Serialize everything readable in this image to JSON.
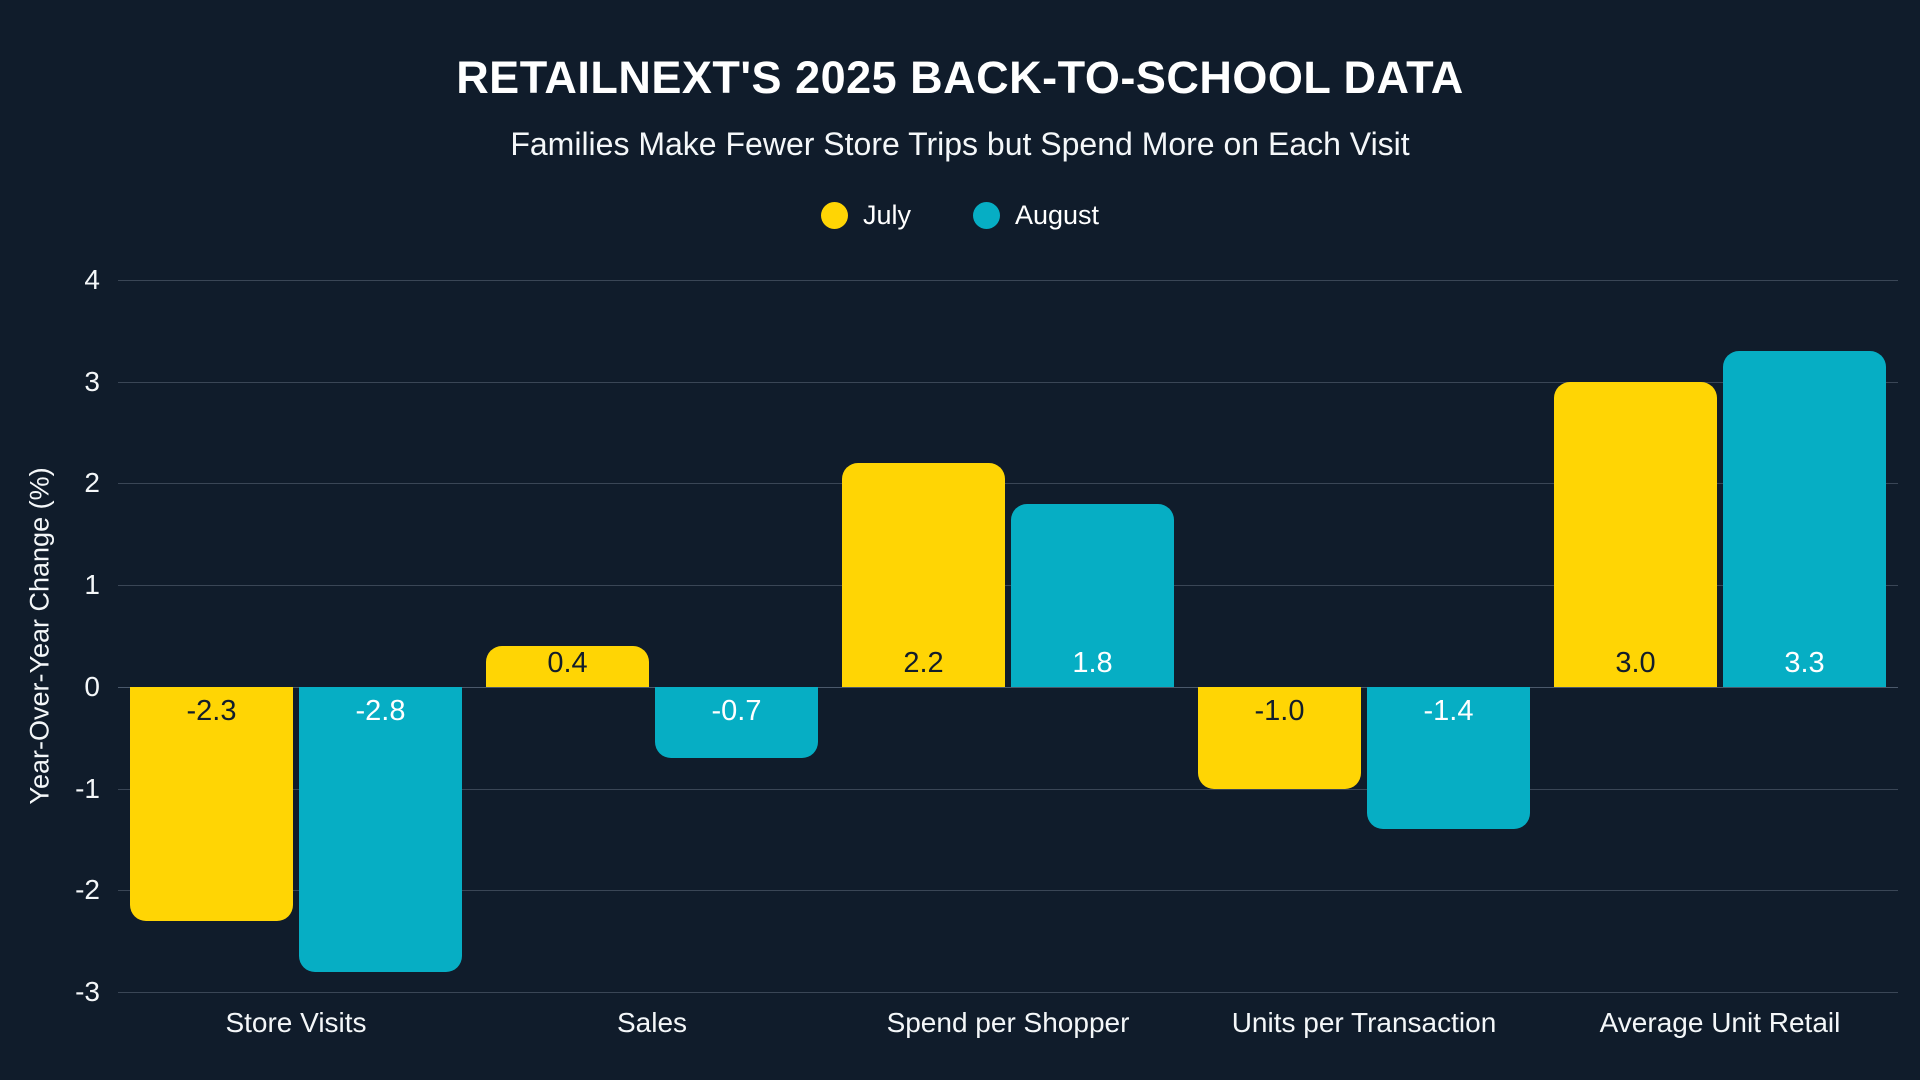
{
  "header": {
    "title": "RETAILNEXT'S 2025 BACK-TO-SCHOOL DATA",
    "subtitle": "Families Make Fewer Store Trips but Spend More on Each Visit"
  },
  "colors": {
    "background": "#101C2B",
    "grid": "#3A4656",
    "zero_line": "#4B596B",
    "text": "#FFFFFF",
    "july": "#FFD504",
    "august": "#06AEC4"
  },
  "chart_data": {
    "type": "bar",
    "title": "RETAILNEXT'S 2025 BACK-TO-SCHOOL DATA",
    "subtitle": "Families Make Fewer Store Trips but Spend More on Each Visit",
    "categories": [
      "Store Visits",
      "Sales",
      "Spend per Shopper",
      "Units per Transaction",
      "Average Unit Retail"
    ],
    "series": [
      {
        "name": "July",
        "color": "#FFD504",
        "label_color": "#121D2B",
        "values": [
          -2.3,
          0.4,
          2.2,
          -1.0,
          3.0
        ],
        "labels": [
          "-2.3",
          "0.4",
          "2.2",
          "-1.0",
          "3.0"
        ]
      },
      {
        "name": "August",
        "color": "#06AEC4",
        "label_color": "#FFFFFF",
        "values": [
          -2.8,
          -0.7,
          1.8,
          -1.4,
          3.3
        ],
        "labels": [
          "-2.8",
          "-0.7",
          "1.8",
          "-1.4",
          "3.3"
        ]
      }
    ],
    "xlabel": "",
    "ylabel": "Year-Over-Year Change (%)",
    "ylim": [
      -3,
      4
    ],
    "yticks": [
      4,
      3,
      2,
      1,
      0,
      -1,
      -2,
      -3
    ],
    "grid": true,
    "legend_position": "top"
  }
}
